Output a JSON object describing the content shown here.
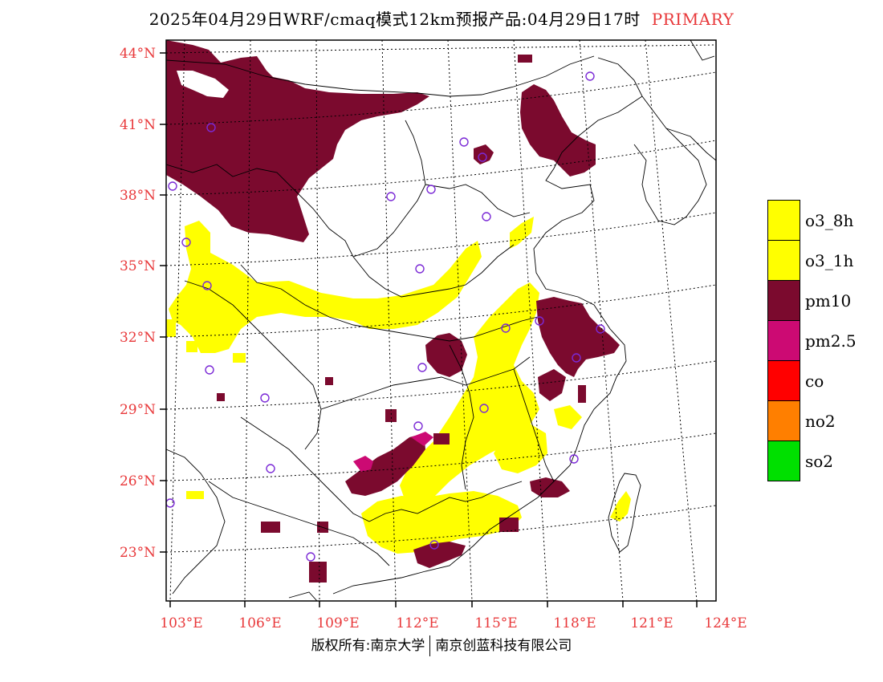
{
  "title": {
    "main": "2025年04月29日WRF/cmaq模式12km预报产品:04月29日17时",
    "tag": "PRIMARY"
  },
  "axes": {
    "lat_labels": [
      "44°N",
      "41°N",
      "38°N",
      "35°N",
      "32°N",
      "29°N",
      "26°N",
      "23°N"
    ],
    "lon_labels": [
      "103°E",
      "106°E",
      "109°E",
      "112°E",
      "115°E",
      "118°E",
      "121°E",
      "124°E"
    ],
    "label_color": "#e8383a"
  },
  "legend": {
    "items": [
      {
        "label": "o3_8h",
        "color": "#ffff00"
      },
      {
        "label": "o3_1h",
        "color": "#ffff00"
      },
      {
        "label": "pm10",
        "color": "#7b0a2e"
      },
      {
        "label": "pm2.5",
        "color": "#cc0a73"
      },
      {
        "label": "co",
        "color": "#ff0000"
      },
      {
        "label": "no2",
        "color": "#ff7f00"
      },
      {
        "label": "so2",
        "color": "#00e000"
      }
    ]
  },
  "copyright": {
    "left": "版权所有:南京大学",
    "right": "南京创蓝科技有限公司"
  },
  "colors": {
    "pm10": "#7b0a2e",
    "pm25": "#cc0a73",
    "o3": "#ffff00",
    "station_marker": "#7b2ad6"
  }
}
